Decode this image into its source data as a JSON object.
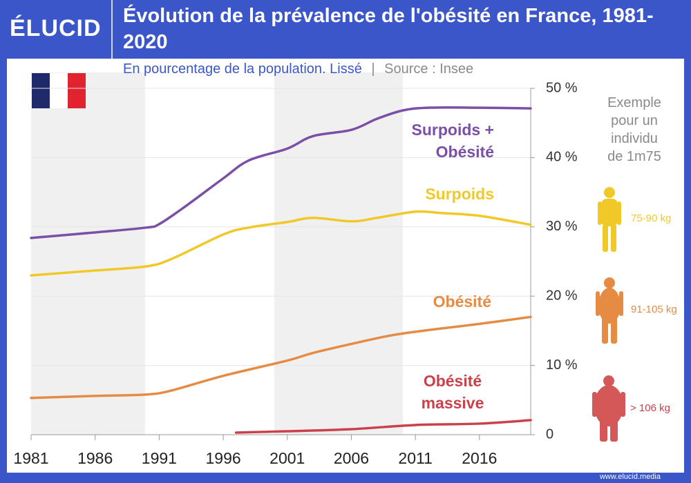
{
  "logo": "ÉLUCID",
  "footer": "www.elucid.media",
  "chart_data": {
    "type": "line",
    "title": "Évolution de la prévalence de l'obésité en France, 1981-2020",
    "subtitle": "En pourcentage de la population. Lissé",
    "subtitle_separator": "|",
    "source": "Source : Insee",
    "xlim": [
      1981,
      2020
    ],
    "xticks": [
      1981,
      1986,
      1991,
      1996,
      2001,
      2006,
      2011,
      2016
    ],
    "ylim": [
      0,
      50
    ],
    "yticks": [
      0,
      {
        "value": 10,
        "label": "10 %"
      },
      {
        "value": 20,
        "label": "20 %"
      },
      {
        "value": 30,
        "label": "30 %"
      },
      {
        "value": 40,
        "label": "40 %"
      },
      {
        "value": 50,
        "label": "50 %"
      }
    ],
    "grid": true,
    "series": [
      {
        "name": "Surpoids + Obésité",
        "color": "#7b4fa6",
        "x": [
          1981,
          1986,
          1990,
          1991,
          1993,
          1996,
          1998,
          2001,
          2003,
          2006,
          2008,
          2010,
          2012,
          2016,
          2020
        ],
        "values": [
          28.4,
          29.2,
          29.9,
          30.4,
          32.9,
          37,
          39.6,
          41.3,
          43.1,
          44,
          45.6,
          46.8,
          47.2,
          47.2,
          47.1
        ]
      },
      {
        "name": "Surpoids",
        "color": "#f0c929",
        "x": [
          1981,
          1986,
          1990,
          1992,
          1996,
          1998,
          2001,
          2003,
          2006,
          2008,
          2011,
          2013,
          2016,
          2020
        ],
        "values": [
          23,
          23.7,
          24.3,
          25.4,
          28.9,
          29.9,
          30.7,
          31.3,
          30.8,
          31.3,
          32.2,
          32,
          31.6,
          30.3
        ]
      },
      {
        "name": "Obésité",
        "color": "#e58b43",
        "x": [
          1981,
          1986,
          1990,
          1992,
          1996,
          2001,
          2003,
          2006,
          2009,
          2012,
          2016,
          2020
        ],
        "values": [
          5.3,
          5.6,
          5.8,
          6.4,
          8.5,
          10.7,
          11.8,
          13.1,
          14.3,
          15.1,
          16,
          17
        ]
      },
      {
        "name": "Obésité massive",
        "color": "#c9424b",
        "x": [
          1997,
          2001,
          2006,
          2011,
          2016,
          2020
        ],
        "values": [
          0.3,
          0.5,
          0.8,
          1.4,
          1.6,
          2.1
        ]
      }
    ],
    "example_text": [
      "Exemple",
      "pour un",
      "individu",
      "de 1m75"
    ],
    "weights": [
      "75-90 kg",
      "91-105 kg",
      "> 106 kg"
    ]
  }
}
